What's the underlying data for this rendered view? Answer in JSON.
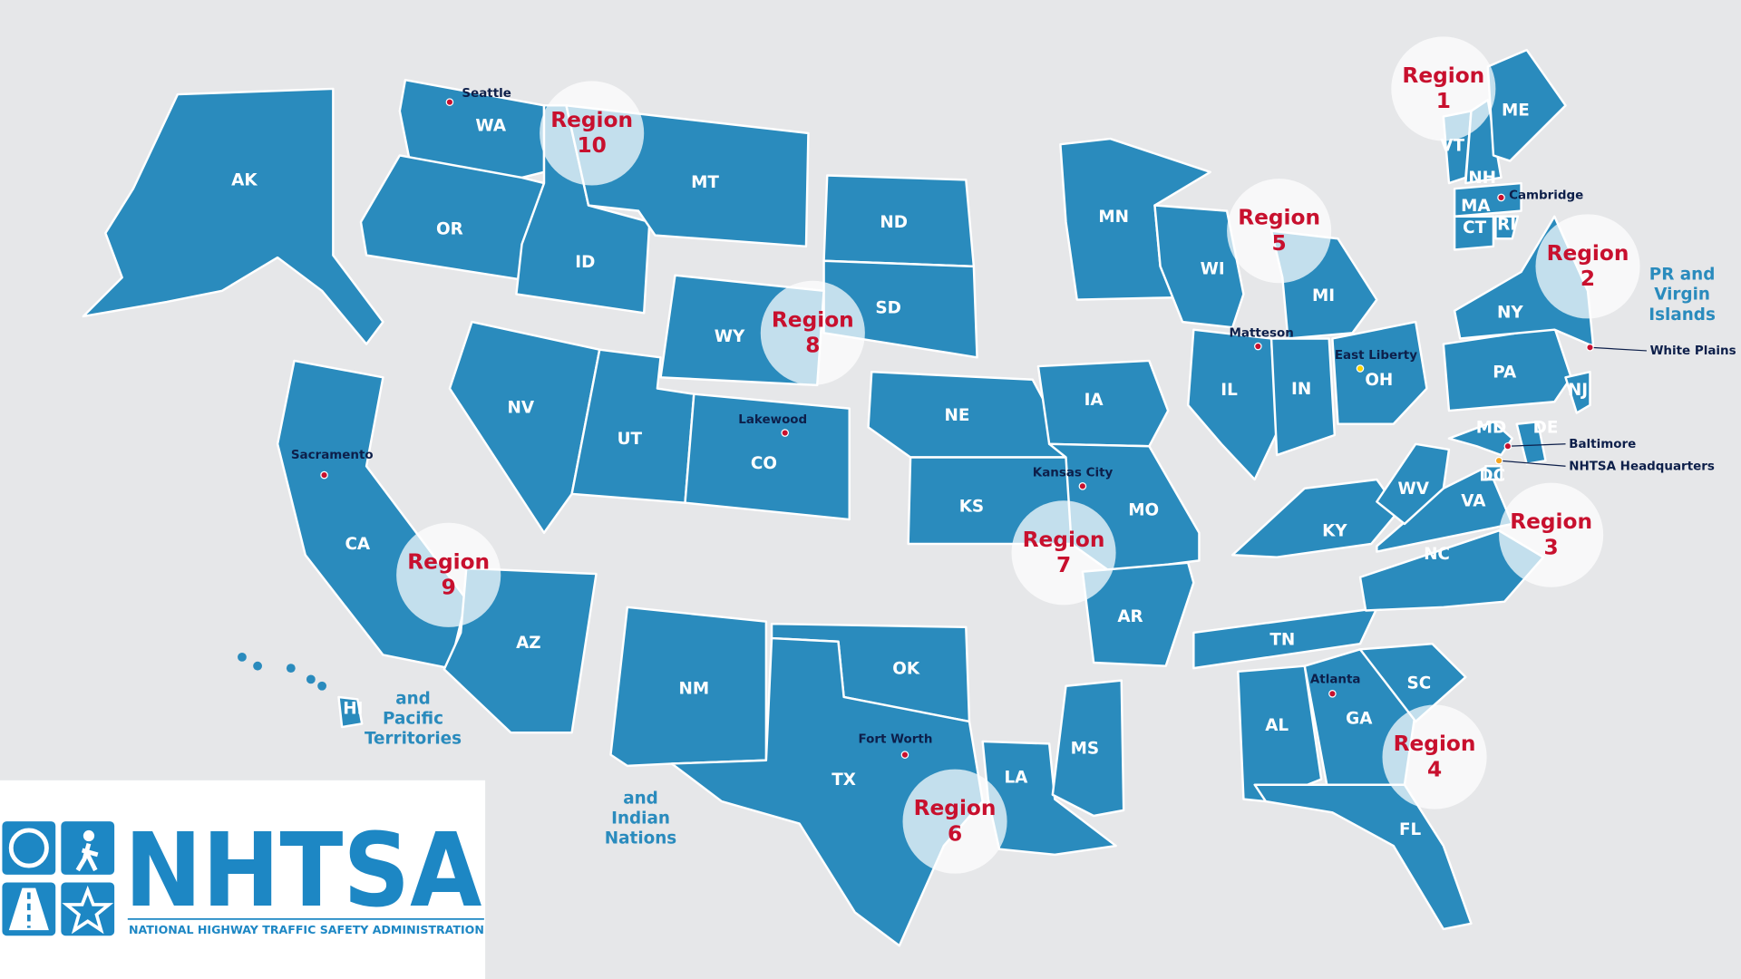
{
  "states": [
    "AK",
    "WA",
    "OR",
    "ID",
    "MT",
    "ND",
    "SD",
    "WY",
    "NV",
    "UT",
    "CO",
    "CA",
    "AZ",
    "NM",
    "NE",
    "KS",
    "OK",
    "TX",
    "MN",
    "IA",
    "MO",
    "AR",
    "LA",
    "MS",
    "WI",
    "MI",
    "IL",
    "IN",
    "OH",
    "KY",
    "TN",
    "AL",
    "GA",
    "SC",
    "FL",
    "NC",
    "VA",
    "WV",
    "PA",
    "NY",
    "NJ",
    "MD",
    "DE",
    "DC",
    "VT",
    "NH",
    "ME",
    "MA",
    "CT",
    "RI",
    "HI"
  ],
  "regions": [
    {
      "word": "Region",
      "number": "1"
    },
    {
      "word": "Region",
      "number": "2"
    },
    {
      "word": "Region",
      "number": "3"
    },
    {
      "word": "Region",
      "number": "4"
    },
    {
      "word": "Region",
      "number": "5"
    },
    {
      "word": "Region",
      "number": "6"
    },
    {
      "word": "Region",
      "number": "7"
    },
    {
      "word": "Region",
      "number": "8"
    },
    {
      "word": "Region",
      "number": "9"
    },
    {
      "word": "Region",
      "number": "10"
    }
  ],
  "cities": [
    "Seattle",
    "Cambridge",
    "White Plains",
    "Matteson",
    "East Liberty",
    "Lakewood",
    "Sacramento",
    "Kansas City",
    "Baltimore",
    "NHTSA Headquarters",
    "Atlanta",
    "Fort Worth"
  ],
  "territories": [
    [
      "PR and",
      "Virgin",
      "Islands"
    ],
    [
      "and",
      "Pacific",
      "Territories"
    ],
    [
      "and",
      "Indian",
      "Nations"
    ]
  ],
  "logo": {
    "name": "NHTSA",
    "subtitle": "NATIONAL HIGHWAY TRAFFIC SAFETY ADMINISTRATION"
  }
}
